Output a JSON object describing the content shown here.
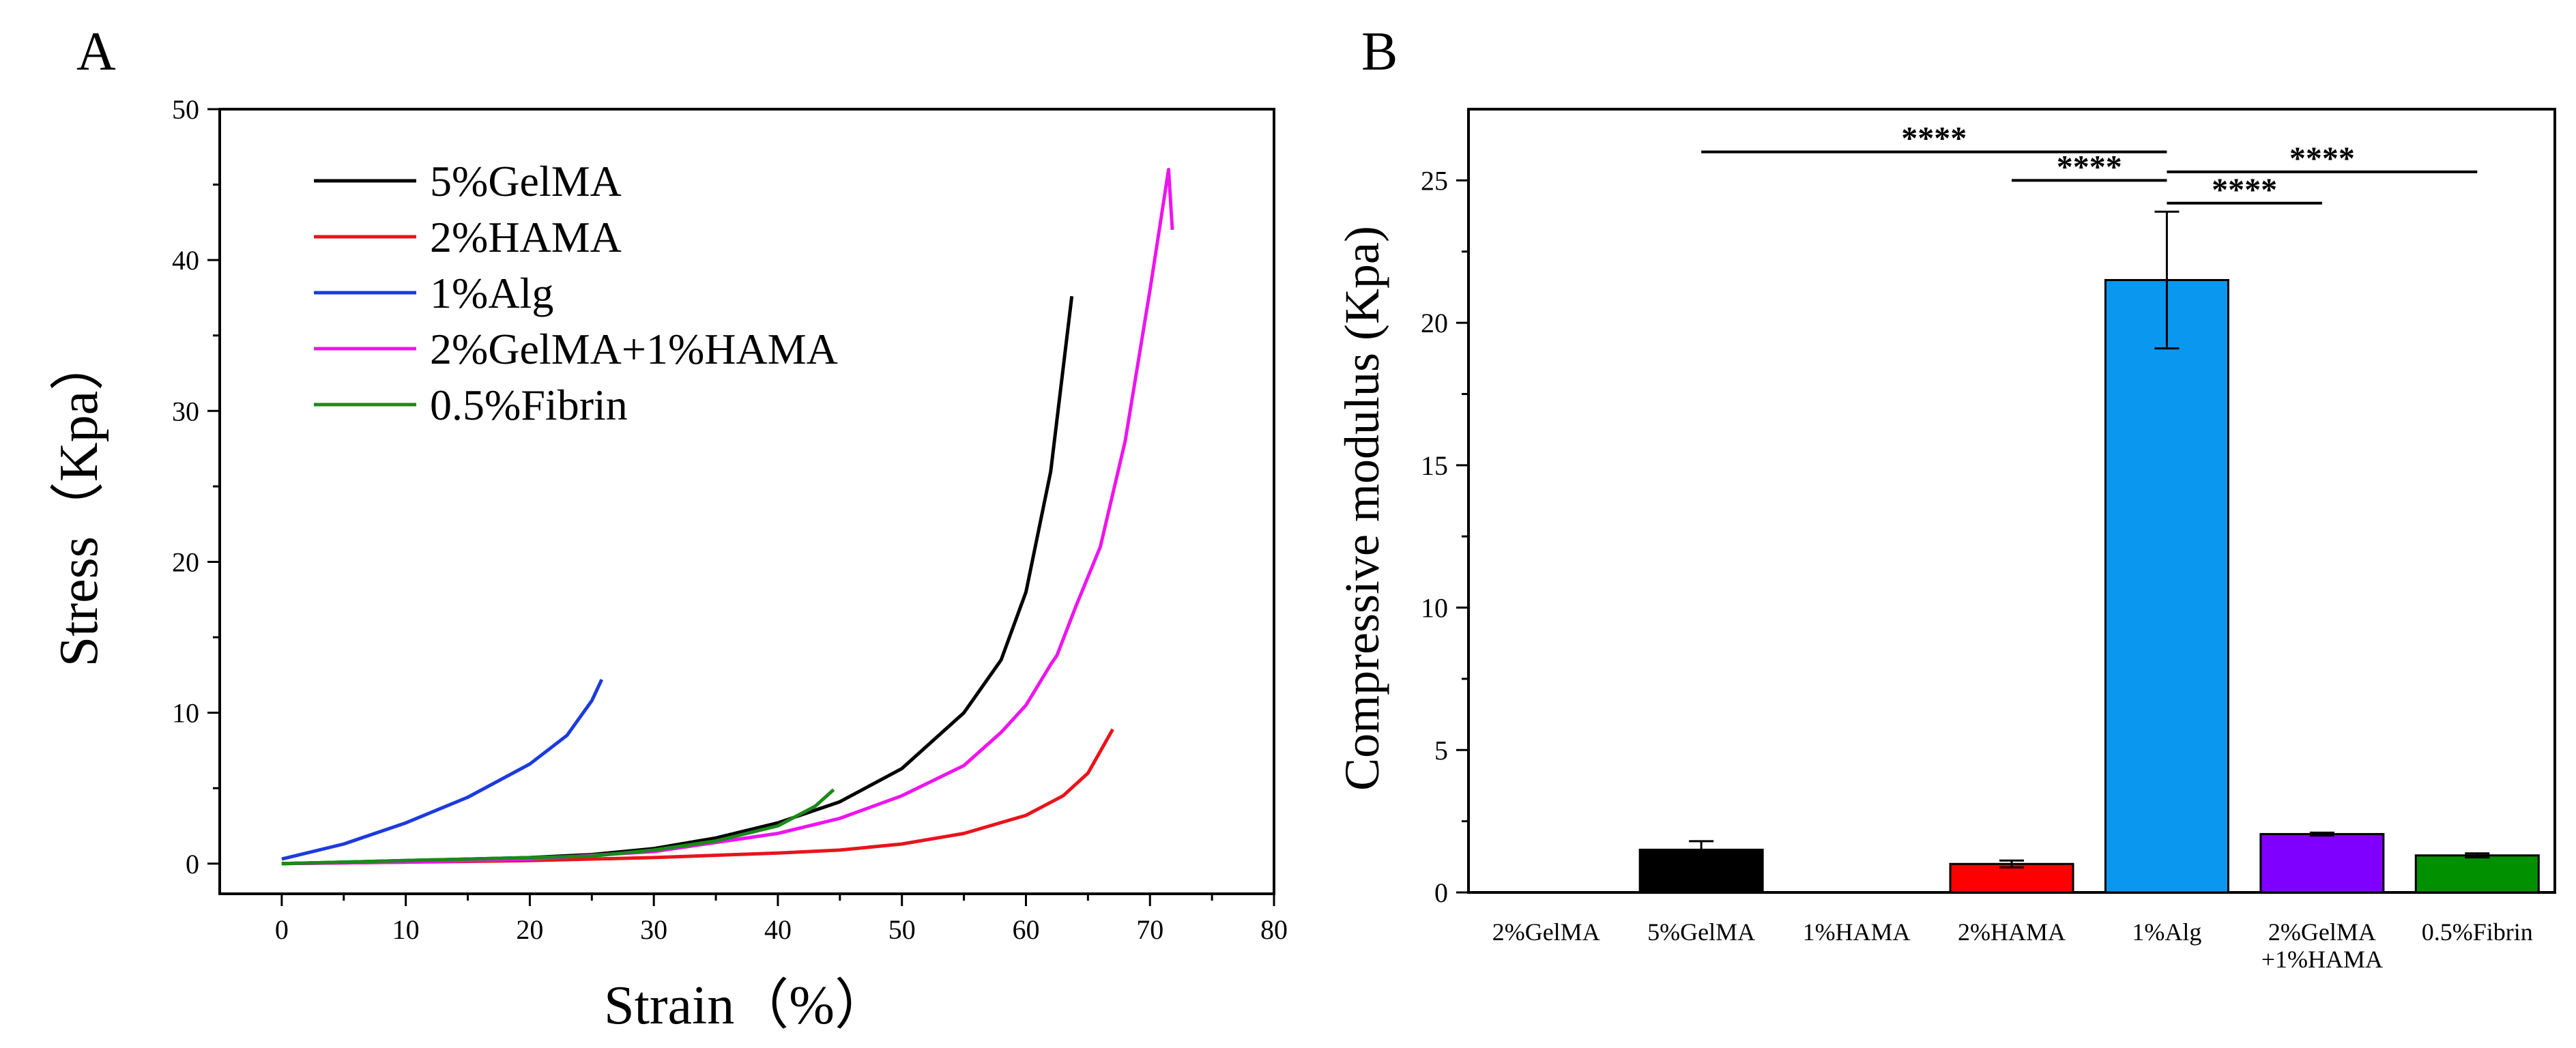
{
  "panels": {
    "a": "A",
    "b": "B"
  },
  "chart_data": [
    {
      "type": "line",
      "panel": "A",
      "xlabel": "Strain（%）",
      "ylabel": "Stress（Kpa）",
      "xlim": [
        -5,
        80
      ],
      "ylim": [
        -2,
        50
      ],
      "xticks": [
        0,
        10,
        20,
        30,
        40,
        50,
        60,
        70,
        80
      ],
      "yticks": [
        0,
        10,
        20,
        30,
        40,
        50
      ],
      "legend_position": "top-left",
      "series": [
        {
          "name": "5%GelMA",
          "color": "#000000",
          "points": [
            [
              0,
              0
            ],
            [
              5,
              0.1
            ],
            [
              10,
              0.2
            ],
            [
              15,
              0.3
            ],
            [
              20,
              0.4
            ],
            [
              25,
              0.6
            ],
            [
              30,
              1.0
            ],
            [
              35,
              1.7
            ],
            [
              40,
              2.7
            ],
            [
              45,
              4.1
            ],
            [
              50,
              6.3
            ],
            [
              55,
              10.0
            ],
            [
              58,
              13.5
            ],
            [
              60,
              18.0
            ],
            [
              62,
              26.0
            ],
            [
              63.7,
              37.6
            ]
          ]
        },
        {
          "name": "2%HAMA",
          "color": "#e8141b",
          "points": [
            [
              0,
              0
            ],
            [
              10,
              0.1
            ],
            [
              20,
              0.2
            ],
            [
              30,
              0.4
            ],
            [
              40,
              0.7
            ],
            [
              45,
              0.9
            ],
            [
              50,
              1.3
            ],
            [
              55,
              2.0
            ],
            [
              60,
              3.2
            ],
            [
              63,
              4.5
            ],
            [
              65,
              6.0
            ],
            [
              67,
              8.9
            ]
          ]
        },
        {
          "name": "1%Alg",
          "color": "#1c3bde",
          "points": [
            [
              0,
              0.3
            ],
            [
              5,
              1.3
            ],
            [
              10,
              2.7
            ],
            [
              15,
              4.4
            ],
            [
              20,
              6.6
            ],
            [
              23,
              8.5
            ],
            [
              25,
              10.8
            ],
            [
              25.8,
              12.2
            ]
          ]
        },
        {
          "name": "2%GelMA+1%HAMA",
          "color": "#ee14ee",
          "points": [
            [
              0,
              0
            ],
            [
              10,
              0.1
            ],
            [
              20,
              0.3
            ],
            [
              30,
              0.8
            ],
            [
              40,
              2.0
            ],
            [
              45,
              3.0
            ],
            [
              50,
              4.5
            ],
            [
              55,
              6.5
            ],
            [
              58,
              8.7
            ],
            [
              60,
              10.5
            ],
            [
              62,
              13.2
            ],
            [
              62.5,
              13.8
            ],
            [
              64,
              17.0
            ],
            [
              66,
              21.0
            ],
            [
              68,
              28.0
            ],
            [
              70,
              38.0
            ],
            [
              71.5,
              46.0
            ],
            [
              71.8,
              42.0
            ]
          ]
        },
        {
          "name": "0.5%Fibrin",
          "color": "#1a8a1a",
          "points": [
            [
              0,
              0
            ],
            [
              5,
              0.1
            ],
            [
              10,
              0.2
            ],
            [
              15,
              0.3
            ],
            [
              20,
              0.4
            ],
            [
              25,
              0.5
            ],
            [
              30,
              0.9
            ],
            [
              35,
              1.5
            ],
            [
              40,
              2.5
            ],
            [
              43,
              3.8
            ],
            [
              44.5,
              4.9
            ]
          ]
        }
      ]
    },
    {
      "type": "bar",
      "panel": "B",
      "ylabel": "Compressive modulus (Kpa)",
      "ylim": [
        0,
        27.5
      ],
      "yticks": [
        0,
        5,
        10,
        15,
        20,
        25
      ],
      "categories": [
        "2%GelMA",
        "5%GelMA",
        "1%HAMA",
        "2%HAMA",
        "1%Alg",
        "2%GelMA\n+1%HAMA",
        "0.5%Fibrin"
      ],
      "values": [
        0,
        1.5,
        0,
        1.0,
        21.5,
        2.05,
        1.3
      ],
      "errors": [
        0,
        0.3,
        0,
        0.12,
        2.4,
        0.05,
        0.07
      ],
      "colors": [
        "#ffffff",
        "#000000",
        "#ffffff",
        "#ff0000",
        "#0a97f0",
        "#8000ff",
        "#009000"
      ],
      "significance": [
        {
          "from": 1,
          "to": 4,
          "y": 26.0,
          "label": "****"
        },
        {
          "from": 3,
          "to": 4,
          "y": 25.0,
          "label": "****"
        },
        {
          "from": 4,
          "to": 6,
          "y": 25.3,
          "label": "****"
        },
        {
          "from": 4,
          "to": 5,
          "y": 24.2,
          "label": "****"
        }
      ]
    }
  ]
}
